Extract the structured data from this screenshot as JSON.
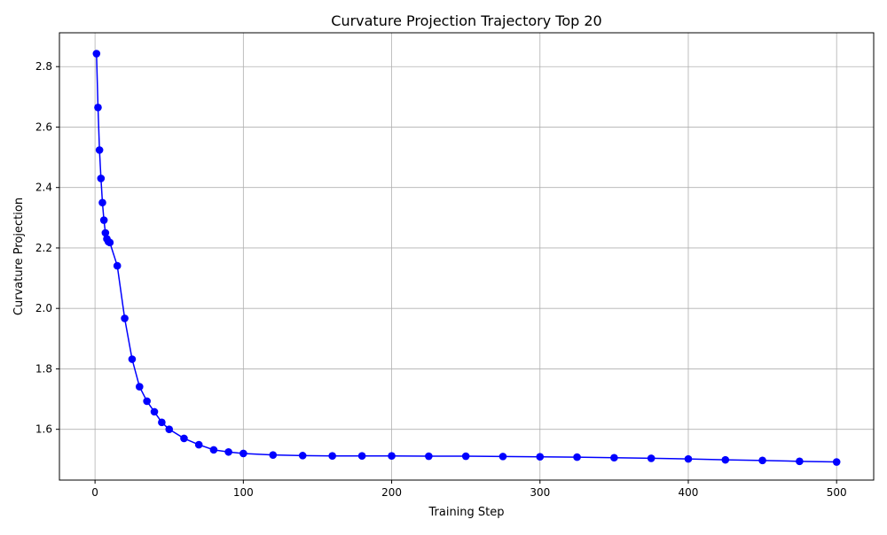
{
  "chart_data": {
    "type": "line",
    "title": "Curvature Projection Trajectory Top 20",
    "xlabel": "Training Step",
    "ylabel": "Curvature Projection",
    "xlim": [
      -24,
      525
    ],
    "ylim": [
      1.432,
      2.912
    ],
    "xticks": [
      0,
      100,
      200,
      300,
      400,
      500
    ],
    "yticks": [
      1.6,
      1.8,
      2.0,
      2.2,
      2.4,
      2.6,
      2.8
    ],
    "xtick_labels": [
      "0",
      "100",
      "200",
      "300",
      "400",
      "500"
    ],
    "ytick_labels": [
      "1.6",
      "1.8",
      "2.0",
      "2.2",
      "2.4",
      "2.6",
      "2.8"
    ],
    "grid": true,
    "line_color": "#0000ff",
    "marker": "circle",
    "series": [
      {
        "x": [
          1,
          2,
          3,
          4,
          5,
          6,
          7,
          8,
          9,
          10,
          15,
          20,
          25,
          30,
          35,
          40,
          45,
          50,
          60,
          70,
          80,
          90,
          100,
          120,
          140,
          160,
          180,
          200,
          225,
          250,
          275,
          300,
          325,
          350,
          375,
          400,
          425,
          450,
          475,
          500
        ],
        "y": [
          2.843,
          2.665,
          2.524,
          2.43,
          2.35,
          2.292,
          2.25,
          2.23,
          2.221,
          2.218,
          2.141,
          1.967,
          1.832,
          1.741,
          1.693,
          1.658,
          1.623,
          1.6,
          1.57,
          1.549,
          1.532,
          1.525,
          1.52,
          1.515,
          1.513,
          1.512,
          1.512,
          1.512,
          1.511,
          1.511,
          1.51,
          1.509,
          1.508,
          1.506,
          1.504,
          1.502,
          1.499,
          1.497,
          1.494,
          1.492
        ]
      }
    ]
  }
}
